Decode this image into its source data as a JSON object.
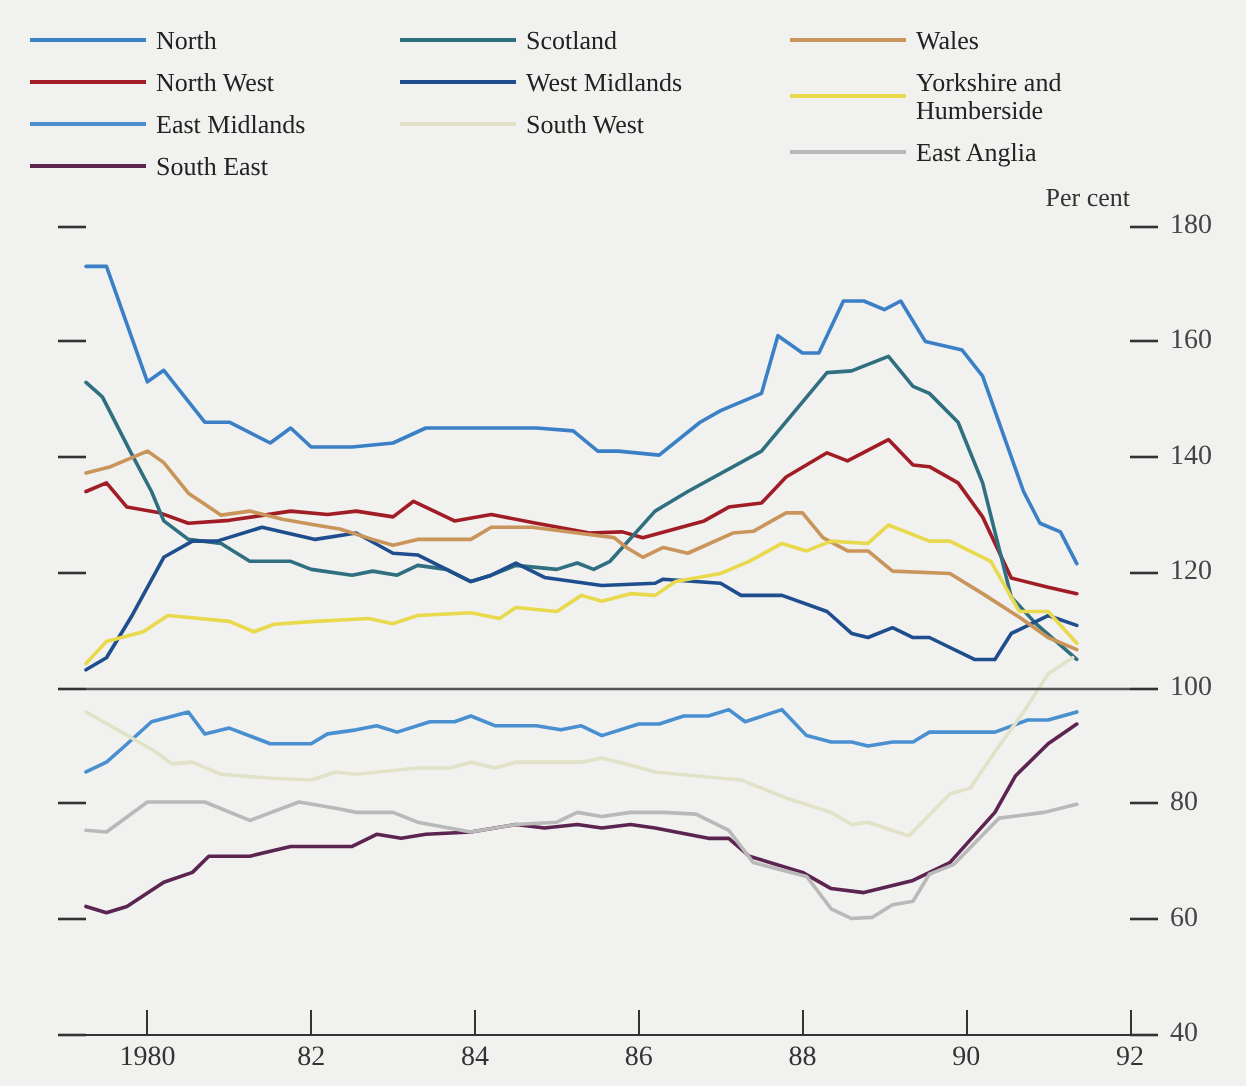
{
  "chart_data": {
    "type": "line",
    "ylabel": "Per cent",
    "xlim": [
      1979.25,
      1992
    ],
    "xticks": [
      {
        "value": 1980,
        "label": "1980"
      },
      {
        "value": 1982,
        "label": "82"
      },
      {
        "value": 1984,
        "label": "84"
      },
      {
        "value": 1986,
        "label": "86"
      },
      {
        "value": 1988,
        "label": "88"
      },
      {
        "value": 1990,
        "label": "90"
      },
      {
        "value": 1992,
        "label": "92"
      }
    ],
    "ylim": [
      40,
      180
    ],
    "yticks": [
      40,
      60,
      80,
      100,
      120,
      140,
      160,
      180
    ],
    "grid": false,
    "legend": "top",
    "marker": "none",
    "line_style": "solid",
    "ref_lines": [
      {
        "axis": "y",
        "value": 100,
        "color": "#555555"
      }
    ],
    "series": [
      {
        "name": "North",
        "color": "#3b80c6",
        "x": [
          1979.25,
          1979.5,
          1980,
          1980.2,
          1980.7,
          1981,
          1981.5,
          1981.75,
          1982,
          1982.5,
          1983,
          1983.4,
          1984.75,
          1985.2,
          1985.5,
          1985.75,
          1986.25,
          1986.75,
          1987,
          1987.5,
          1987.7,
          1988,
          1988.2,
          1988.5,
          1988.75,
          1989,
          1989.2,
          1989.5,
          1989.95,
          1990.2,
          1990.7,
          1990.9,
          1991.15,
          1991.35
        ],
        "values": [
          173,
          173,
          153,
          155,
          146,
          146,
          142.4,
          145,
          141.7,
          141.7,
          142.4,
          145,
          145,
          144.5,
          141,
          141,
          140.3,
          146,
          148,
          151,
          161,
          158,
          158,
          167,
          167,
          165.5,
          167,
          160,
          158.5,
          154,
          134,
          128.5,
          127,
          121.5
        ]
      },
      {
        "name": "North West",
        "color": "#a11d26",
        "x": [
          1979.25,
          1979.5,
          1979.75,
          1980.15,
          1980.5,
          1981,
          1981.75,
          1982.2,
          1982.55,
          1983,
          1983.25,
          1983.75,
          1984.2,
          1984.75,
          1985.4,
          1985.8,
          1986.05,
          1986.8,
          1987.1,
          1987.5,
          1987.8,
          1988.3,
          1988.55,
          1989.05,
          1989.35,
          1989.55,
          1989.9,
          1990.2,
          1990.55,
          1991,
          1991.35
        ],
        "values": [
          134,
          135.5,
          131.3,
          130.3,
          128.5,
          129,
          130.6,
          130,
          130.6,
          129.6,
          132.3,
          128.9,
          130,
          128.5,
          126.8,
          127,
          126,
          128.9,
          131.3,
          132,
          136.5,
          140.7,
          139.3,
          143,
          138.6,
          138.3,
          135.5,
          129.6,
          119,
          117.4,
          116.3
        ]
      },
      {
        "name": "East Midlands",
        "color": "#4a90d0",
        "x": [
          1979.25,
          1979.5,
          1979.7,
          1980.05,
          1980.5,
          1980.7,
          1981,
          1981.5,
          1982,
          1982.2,
          1982.55,
          1982.8,
          1983.05,
          1983.45,
          1983.75,
          1983.95,
          1984.25,
          1984.75,
          1985.05,
          1985.3,
          1985.55,
          1986,
          1986.25,
          1986.55,
          1986.85,
          1987.1,
          1987.3,
          1987.75,
          1988.05,
          1988.35,
          1988.6,
          1988.8,
          1989.1,
          1989.35,
          1989.55,
          1990.35,
          1990.75,
          1991,
          1991.35
        ],
        "values": [
          85.4,
          87.1,
          89.6,
          94.1,
          95.8,
          92,
          93,
          90.3,
          90.3,
          92,
          92.7,
          93.4,
          92.3,
          94.1,
          94.1,
          95.1,
          93.4,
          93.4,
          92.7,
          93.4,
          91.7,
          93.7,
          93.7,
          95.1,
          95.1,
          96.2,
          94.1,
          96.2,
          91.7,
          90.6,
          90.6,
          89.9,
          90.6,
          90.6,
          92.3,
          92.3,
          94.4,
          94.4,
          95.8
        ]
      },
      {
        "name": "South East",
        "color": "#5c2450",
        "x": [
          1979.25,
          1979.5,
          1979.75,
          1980.2,
          1980.55,
          1980.75,
          1981.25,
          1981.75,
          1982.5,
          1982.8,
          1983.1,
          1983.4,
          1983.95,
          1984.5,
          1984.85,
          1985.25,
          1985.55,
          1985.9,
          1986.2,
          1986.85,
          1987.1,
          1987.35,
          1988,
          1988.35,
          1988.75,
          1989.35,
          1989.8,
          1990.35,
          1990.6,
          1991,
          1991.35
        ],
        "values": [
          62.1,
          61,
          62.1,
          66.3,
          68,
          70.8,
          70.8,
          72.5,
          72.5,
          74.6,
          73.9,
          74.6,
          75,
          76.3,
          75.7,
          76.3,
          75.7,
          76.3,
          75.7,
          73.9,
          73.9,
          70.8,
          68,
          65.2,
          64.5,
          66.6,
          69.7,
          78.4,
          84.7,
          90.3,
          93.7
        ]
      },
      {
        "name": "Scotland",
        "color": "#2f6f80",
        "x": [
          1979.25,
          1979.45,
          1979.8,
          1980.05,
          1980.2,
          1980.5,
          1980.9,
          1981.25,
          1981.75,
          1982,
          1982.5,
          1982.75,
          1983.05,
          1983.3,
          1983.65,
          1983.95,
          1984.2,
          1984.5,
          1985,
          1985.25,
          1985.45,
          1985.65,
          1986.2,
          1986.6,
          1987.5,
          1988.3,
          1988.6,
          1989.05,
          1989.35,
          1989.55,
          1989.9,
          1990.2,
          1990.55,
          1990.85,
          1991.35
        ],
        "values": [
          152.9,
          150.4,
          140.7,
          134,
          128.9,
          125.7,
          125,
          121.9,
          121.9,
          120.5,
          119.5,
          120.2,
          119.5,
          121.2,
          120.5,
          118.4,
          119.5,
          121.2,
          120.5,
          121.6,
          120.5,
          121.9,
          130.6,
          134,
          141,
          154.6,
          154.9,
          157.4,
          152.2,
          151,
          146,
          135.5,
          115.7,
          111.1,
          104.9
        ]
      },
      {
        "name": "West Midlands",
        "color": "#1f4e8e",
        "x": [
          1979.25,
          1979.5,
          1979.8,
          1980.2,
          1980.55,
          1980.85,
          1981.4,
          1982.05,
          1982.55,
          1983,
          1983.3,
          1983.95,
          1984.2,
          1984.5,
          1984.85,
          1985.55,
          1986.2,
          1986.3,
          1987,
          1987.25,
          1987.75,
          1988.3,
          1988.6,
          1988.8,
          1989.1,
          1989.35,
          1989.55,
          1990.1,
          1990.35,
          1990.55,
          1991,
          1991.35
        ],
        "values": [
          103.1,
          105.2,
          112.2,
          122.6,
          125.4,
          125.4,
          127.8,
          125.7,
          126.8,
          123.3,
          123,
          118.4,
          119.5,
          121.6,
          119.1,
          117.7,
          118.1,
          118.8,
          118.1,
          116,
          116,
          113.2,
          109.4,
          108.7,
          110.4,
          108.7,
          108.7,
          104.9,
          104.9,
          109.4,
          112.5,
          110.8
        ]
      },
      {
        "name": "South West",
        "color": "#e2e2c8",
        "x": [
          1979.25,
          1979.6,
          1980.1,
          1980.3,
          1980.55,
          1980.9,
          1981.5,
          1982,
          1982.3,
          1982.55,
          1983.3,
          1983.7,
          1983.95,
          1984.25,
          1984.5,
          1985.3,
          1985.55,
          1985.85,
          1986.2,
          1987,
          1987.25,
          1987.8,
          1988.35,
          1988.6,
          1988.8,
          1989.3,
          1989.8,
          1990.05,
          1990.35,
          1990.7,
          1991,
          1991.3
        ],
        "values": [
          95.8,
          93,
          88.9,
          86.8,
          87.1,
          85,
          84.3,
          84,
          85.4,
          85,
          86.1,
          86.1,
          87.1,
          86.1,
          87.1,
          87.1,
          87.8,
          86.8,
          85.4,
          84.3,
          84,
          80.9,
          78.4,
          76.3,
          76.7,
          74.3,
          81.6,
          82.6,
          88.9,
          95.8,
          102.4,
          105.2
        ]
      },
      {
        "name": "Wales",
        "color": "#c9955b",
        "x": [
          1979.25,
          1979.55,
          1980,
          1980.2,
          1980.5,
          1980.9,
          1981.25,
          1981.65,
          1982.05,
          1982.35,
          1982.75,
          1983,
          1983.3,
          1983.95,
          1984.2,
          1984.7,
          1985.25,
          1985.7,
          1985.85,
          1986.05,
          1986.3,
          1986.6,
          1987.15,
          1987.4,
          1987.8,
          1988,
          1988.25,
          1988.55,
          1988.8,
          1989.1,
          1989.8,
          1990.2,
          1990.65,
          1991,
          1991.35
        ],
        "values": [
          137.2,
          138.3,
          141,
          139,
          133.7,
          129.9,
          130.6,
          129.2,
          128.2,
          127.5,
          125.7,
          124.7,
          125.7,
          125.7,
          127.8,
          127.8,
          126.8,
          126,
          124.3,
          122.6,
          124.3,
          123.3,
          126.8,
          127.1,
          130.3,
          130.3,
          126,
          123.7,
          123.7,
          120.2,
          119.8,
          116.3,
          112.2,
          108.7,
          106.6
        ]
      },
      {
        "name": "Yorkshire and Humberside",
        "color": "#e8d94d",
        "x": [
          1979.25,
          1979.5,
          1979.95,
          1980.25,
          1981,
          1981.3,
          1981.55,
          1982.05,
          1982.7,
          1983,
          1983.3,
          1983.95,
          1984.3,
          1984.5,
          1985,
          1985.3,
          1985.55,
          1985.9,
          1986.2,
          1986.45,
          1987,
          1987.35,
          1987.75,
          1988.05,
          1988.35,
          1988.8,
          1989.05,
          1989.55,
          1989.8,
          1990.3,
          1990.65,
          1991,
          1991.35
        ],
        "values": [
          104.2,
          108,
          109.7,
          112.5,
          111.5,
          109.7,
          111,
          111.5,
          112,
          111.1,
          112.5,
          113,
          112,
          113.9,
          113.2,
          116,
          115,
          116.3,
          116,
          118.4,
          119.8,
          121.9,
          125,
          123.7,
          125.4,
          125,
          128.2,
          125.4,
          125.4,
          121.9,
          113.2,
          113.2,
          107.7
        ]
      },
      {
        "name": "East Anglia",
        "color": "#b9b9b9",
        "x": [
          1979.25,
          1979.5,
          1980,
          1980.7,
          1981.25,
          1981.85,
          1982.3,
          1982.55,
          1983,
          1983.3,
          1983.95,
          1984.5,
          1985,
          1985.25,
          1985.55,
          1985.9,
          1986.3,
          1986.7,
          1987.1,
          1987.4,
          1988.05,
          1988.35,
          1988.6,
          1988.85,
          1989.1,
          1989.35,
          1989.55,
          1989.85,
          1990.4,
          1990.95,
          1991.35
        ],
        "values": [
          75.3,
          75,
          80.2,
          80.2,
          77,
          80.2,
          79.1,
          78.4,
          78.4,
          76.7,
          75,
          76.3,
          76.7,
          78.4,
          77.7,
          78.4,
          78.4,
          78.1,
          75.3,
          69.7,
          67.3,
          61.7,
          60,
          60.2,
          62.4,
          63,
          67.7,
          69.4,
          77.4,
          78.4,
          79.8
        ]
      }
    ]
  }
}
